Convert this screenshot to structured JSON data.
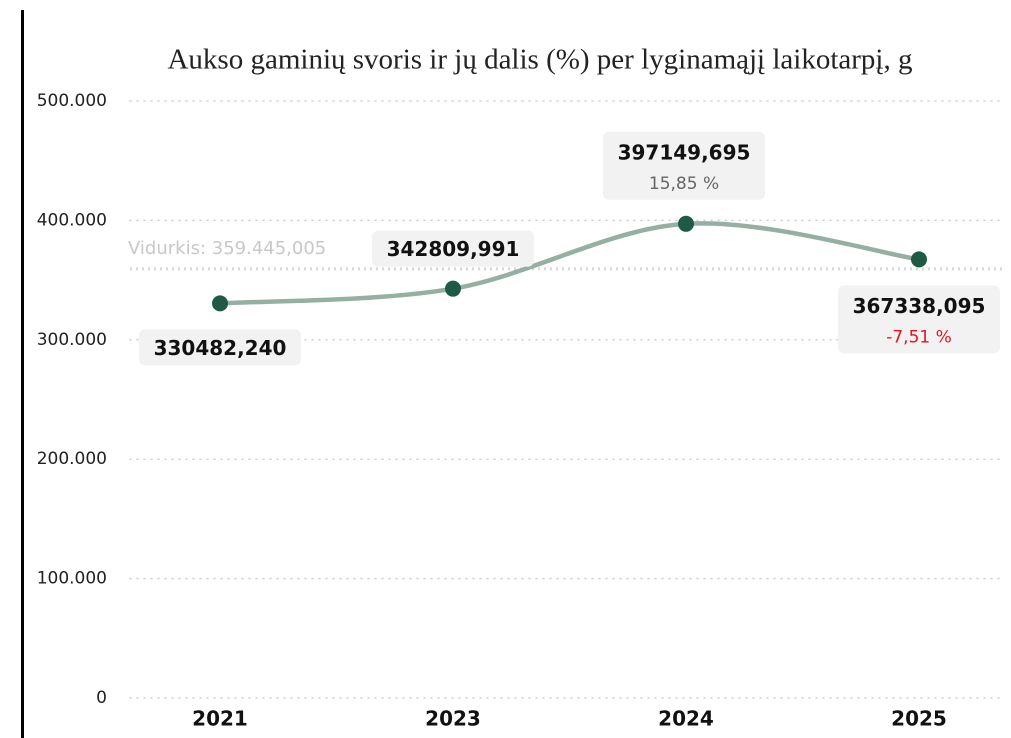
{
  "chart_data": {
    "type": "line",
    "title": "Aukso gaminių svoris ir jų dalis (%) per lyginamąjį laikotarpį, g",
    "categories": [
      "2021",
      "2023",
      "2024",
      "2025"
    ],
    "values": [
      330482.24,
      342809.991,
      397149.695,
      367338.095
    ],
    "value_labels": [
      "330482,240",
      "342809,991",
      "397149,695",
      "367338,095"
    ],
    "changes": [
      null,
      null,
      15.85,
      -7.51
    ],
    "change_labels": [
      null,
      null,
      "15,85 %",
      "-7,51 %"
    ],
    "line_color": "#94b0a3",
    "marker_color": "#1f5a45",
    "average": {
      "value": 359445.005,
      "label": "Vidurkis: 359.445,005"
    },
    "ylim": [
      0,
      500000
    ],
    "yticks": [
      0,
      {
        "value": 100000,
        "label": "100.000"
      },
      {
        "value": 200000,
        "label": "200.000"
      },
      {
        "value": 300000,
        "label": "300.000"
      },
      {
        "value": 400000,
        "label": "400.000"
      },
      {
        "value": 500000,
        "label": "500.000"
      }
    ],
    "grid": true
  }
}
